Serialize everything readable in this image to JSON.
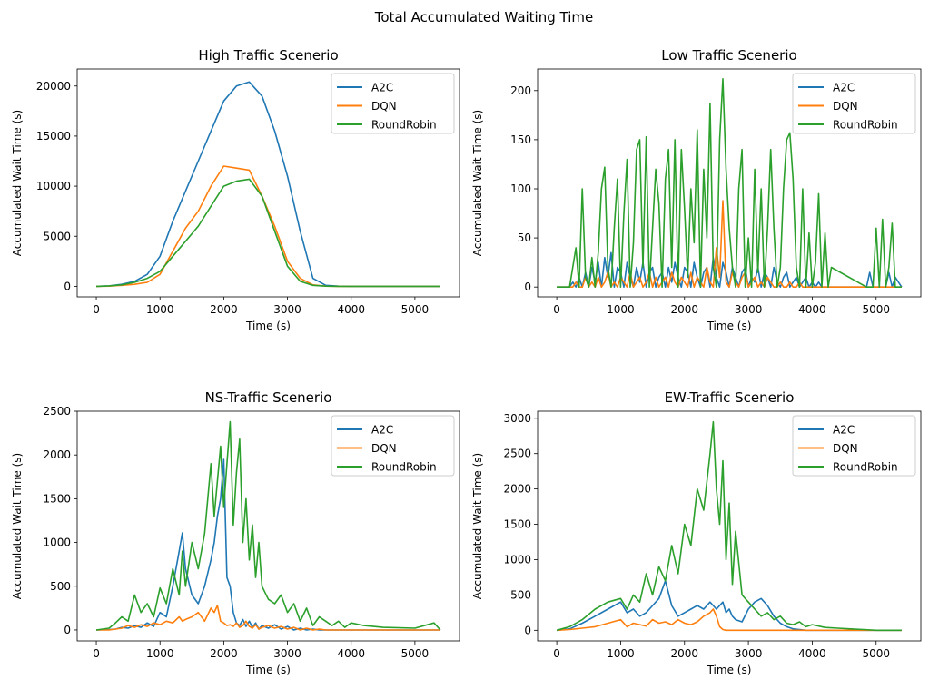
{
  "figure": {
    "suptitle": "Total Accumulated Waiting Time"
  },
  "colors": {
    "A2C": "#1f77b4",
    "DQN": "#ff7f0e",
    "RoundRobin": "#2ca02c"
  },
  "chart_data": [
    {
      "type": "line",
      "title": "High Traffic Scenerio",
      "xlabel": "Time (s)",
      "ylabel": "Accumulated Wait Time (s)",
      "xlim": [
        -300,
        5700
      ],
      "ylim": [
        -1050,
        21700
      ],
      "xticks": [
        0,
        1000,
        2000,
        3000,
        4000,
        5000
      ],
      "yticks": [
        0,
        5000,
        10000,
        15000,
        20000
      ],
      "legend_position": "top-right",
      "x": [
        0,
        200,
        400,
        600,
        800,
        1000,
        1200,
        1400,
        1600,
        1800,
        2000,
        2200,
        2400,
        2600,
        2800,
        3000,
        3200,
        3400,
        3600,
        3800,
        4000,
        4500,
        5000,
        5400
      ],
      "series": [
        {
          "name": "A2C",
          "values": [
            0,
            50,
            200,
            500,
            1200,
            3000,
            6500,
            9500,
            12500,
            15500,
            18500,
            20000,
            20400,
            19000,
            15500,
            11000,
            5500,
            800,
            100,
            20,
            0,
            0,
            0,
            0
          ]
        },
        {
          "name": "DQN",
          "values": [
            0,
            20,
            100,
            200,
            400,
            1200,
            3500,
            5800,
            7500,
            10000,
            12000,
            11800,
            11600,
            9000,
            6000,
            2500,
            800,
            150,
            20,
            0,
            0,
            0,
            0,
            0
          ]
        },
        {
          "name": "RoundRobin",
          "values": [
            0,
            50,
            150,
            400,
            800,
            1500,
            3000,
            4500,
            6000,
            8000,
            10000,
            10500,
            10700,
            9000,
            5500,
            2000,
            500,
            100,
            20,
            0,
            0,
            0,
            0,
            0
          ]
        }
      ]
    },
    {
      "type": "line",
      "title": "Low Traffic Scenerio",
      "xlabel": "Time (s)",
      "ylabel": "Accumulated Wait Time (s)",
      "xlim": [
        -300,
        5700
      ],
      "ylim": [
        -10,
        222
      ],
      "xticks": [
        0,
        1000,
        2000,
        3000,
        4000,
        5000
      ],
      "yticks": [
        0,
        50,
        100,
        150,
        200
      ],
      "legend_position": "top-right",
      "x": [
        0,
        200,
        250,
        300,
        350,
        400,
        450,
        500,
        550,
        600,
        650,
        700,
        750,
        800,
        850,
        900,
        950,
        1000,
        1050,
        1100,
        1150,
        1200,
        1250,
        1300,
        1350,
        1400,
        1450,
        1500,
        1550,
        1600,
        1650,
        1700,
        1750,
        1800,
        1850,
        1900,
        1950,
        2000,
        2050,
        2100,
        2150,
        2200,
        2250,
        2300,
        2350,
        2400,
        2450,
        2500,
        2550,
        2600,
        2650,
        2700,
        2750,
        2800,
        2850,
        2900,
        2950,
        3000,
        3050,
        3100,
        3150,
        3200,
        3250,
        3300,
        3350,
        3400,
        3450,
        3500,
        3550,
        3600,
        3650,
        3700,
        3750,
        3800,
        3850,
        3900,
        3950,
        4000,
        4050,
        4100,
        4150,
        4200,
        4250,
        4300,
        4850,
        4900,
        4950,
        5000,
        5050,
        5100,
        5150,
        5200,
        5250,
        5300,
        5400
      ],
      "series": [
        {
          "name": "A2C",
          "values": [
            0,
            0,
            5,
            0,
            10,
            0,
            15,
            0,
            20,
            5,
            25,
            0,
            30,
            10,
            35,
            0,
            20,
            15,
            0,
            25,
            10,
            0,
            20,
            5,
            25,
            0,
            15,
            20,
            0,
            10,
            15,
            0,
            20,
            5,
            25,
            10,
            0,
            20,
            15,
            0,
            25,
            10,
            0,
            15,
            20,
            0,
            30,
            10,
            0,
            25,
            15,
            0,
            20,
            10,
            0,
            15,
            20,
            0,
            10,
            5,
            20,
            0,
            15,
            10,
            0,
            20,
            5,
            0,
            10,
            15,
            0,
            5,
            10,
            0,
            5,
            10,
            0,
            5,
            0,
            5,
            0,
            0,
            0,
            0,
            0,
            15,
            0,
            0,
            0,
            0,
            0,
            15,
            0,
            10,
            0
          ]
        },
        {
          "name": "DQN",
          "values": [
            0,
            0,
            0,
            5,
            0,
            0,
            10,
            0,
            5,
            0,
            10,
            0,
            5,
            15,
            0,
            5,
            0,
            10,
            5,
            0,
            15,
            0,
            5,
            10,
            0,
            5,
            15,
            0,
            10,
            0,
            5,
            10,
            0,
            15,
            5,
            0,
            10,
            5,
            0,
            15,
            0,
            10,
            5,
            0,
            20,
            5,
            0,
            40,
            10,
            88,
            5,
            0,
            15,
            5,
            0,
            10,
            15,
            0,
            5,
            10,
            0,
            5,
            0,
            10,
            5,
            0,
            0,
            5,
            0,
            0,
            5,
            0,
            0,
            5,
            0,
            0,
            0,
            0,
            0,
            0,
            0,
            0,
            0,
            0,
            0,
            0,
            0,
            0,
            0,
            0,
            0,
            0,
            0,
            0,
            0
          ]
        },
        {
          "name": "RoundRobin",
          "values": [
            0,
            0,
            20,
            40,
            0,
            100,
            10,
            0,
            30,
            0,
            35,
            100,
            122,
            20,
            0,
            60,
            110,
            0,
            75,
            130,
            0,
            45,
            140,
            150,
            20,
            153,
            0,
            60,
            120,
            85,
            0,
            110,
            140,
            20,
            150,
            0,
            140,
            80,
            10,
            100,
            45,
            160,
            0,
            120,
            50,
            187,
            20,
            0,
            150,
            212,
            120,
            60,
            20,
            0,
            100,
            140,
            0,
            50,
            0,
            120,
            15,
            100,
            0,
            60,
            140,
            60,
            0,
            20,
            100,
            150,
            157,
            110,
            20,
            0,
            100,
            0,
            55,
            0,
            25,
            95,
            0,
            55,
            0,
            20,
            0,
            0,
            0,
            60,
            0,
            69,
            0,
            20,
            65,
            0,
            0
          ]
        }
      ]
    },
    {
      "type": "line",
      "title": "NS-Traffic Scenerio",
      "xlabel": "Time (s)",
      "ylabel": "Accumulated Wait Time (s)",
      "xlim": [
        -300,
        5700
      ],
      "ylim": [
        -125,
        2500
      ],
      "xticks": [
        0,
        1000,
        2000,
        3000,
        4000,
        5000
      ],
      "yticks": [
        0,
        500,
        1000,
        1500,
        2000,
        2500
      ],
      "legend_position": "top-right",
      "x": [
        0,
        200,
        300,
        400,
        500,
        600,
        700,
        800,
        900,
        1000,
        1100,
        1200,
        1300,
        1350,
        1400,
        1500,
        1600,
        1700,
        1800,
        1850,
        1900,
        1950,
        2000,
        2050,
        2100,
        2150,
        2200,
        2250,
        2300,
        2350,
        2400,
        2450,
        2500,
        2550,
        2600,
        2700,
        2800,
        2900,
        3000,
        3100,
        3200,
        3300,
        3400,
        3500,
        3600,
        3700,
        3800,
        3900,
        4000,
        4200,
        4500,
        5000,
        5300,
        5400
      ],
      "series": [
        {
          "name": "A2C",
          "values": [
            0,
            5,
            10,
            30,
            20,
            50,
            30,
            80,
            40,
            200,
            150,
            500,
            900,
            1110,
            700,
            400,
            300,
            500,
            800,
            1000,
            1300,
            1500,
            1950,
            600,
            500,
            200,
            80,
            50,
            120,
            40,
            100,
            30,
            80,
            10,
            50,
            20,
            60,
            10,
            40,
            0,
            20,
            0,
            10,
            0,
            0,
            0,
            0,
            0,
            0,
            0,
            0,
            0,
            0,
            0
          ]
        },
        {
          "name": "DQN",
          "values": [
            0,
            0,
            10,
            20,
            50,
            30,
            60,
            40,
            80,
            60,
            100,
            80,
            150,
            100,
            120,
            150,
            200,
            100,
            250,
            200,
            280,
            100,
            80,
            50,
            60,
            40,
            80,
            30,
            50,
            100,
            40,
            20,
            60,
            10,
            30,
            50,
            20,
            40,
            10,
            30,
            0,
            20,
            0,
            10,
            0,
            0,
            0,
            0,
            0,
            0,
            0,
            0,
            0,
            0
          ]
        },
        {
          "name": "RoundRobin",
          "values": [
            0,
            20,
            80,
            150,
            100,
            400,
            200,
            300,
            150,
            480,
            300,
            700,
            400,
            900,
            500,
            1000,
            700,
            1100,
            1900,
            1300,
            1700,
            2100,
            1400,
            1900,
            2380,
            1200,
            1800,
            2180,
            1000,
            1500,
            800,
            1200,
            600,
            1000,
            500,
            350,
            300,
            400,
            200,
            300,
            100,
            250,
            50,
            150,
            100,
            50,
            100,
            30,
            80,
            50,
            30,
            20,
            80,
            0
          ]
        }
      ]
    },
    {
      "type": "line",
      "title": "EW-Traffic Scenerio",
      "xlabel": "Time (s)",
      "ylabel": "Accumulated Wait Time (s)",
      "xlim": [
        -300,
        5700
      ],
      "ylim": [
        -150,
        3100
      ],
      "xticks": [
        0,
        1000,
        2000,
        3000,
        4000,
        5000
      ],
      "yticks": [
        0,
        500,
        1000,
        1500,
        2000,
        2500,
        3000
      ],
      "legend_position": "top-right",
      "x": [
        0,
        200,
        400,
        600,
        800,
        1000,
        1100,
        1200,
        1300,
        1400,
        1500,
        1600,
        1700,
        1800,
        1900,
        2000,
        2100,
        2200,
        2300,
        2400,
        2450,
        2500,
        2550,
        2600,
        2650,
        2700,
        2750,
        2800,
        2900,
        3000,
        3100,
        3200,
        3300,
        3400,
        3500,
        3600,
        3700,
        3800,
        3900,
        4000,
        4200,
        4400,
        4600,
        4800,
        5000,
        5400
      ],
      "series": [
        {
          "name": "A2C",
          "values": [
            0,
            20,
            100,
            200,
            300,
            400,
            250,
            300,
            200,
            250,
            350,
            450,
            700,
            350,
            200,
            250,
            300,
            350,
            300,
            400,
            350,
            300,
            350,
            400,
            250,
            300,
            200,
            150,
            120,
            300,
            400,
            450,
            350,
            200,
            100,
            50,
            20,
            10,
            0,
            0,
            0,
            0,
            0,
            0,
            0,
            0
          ]
        },
        {
          "name": "DQN",
          "values": [
            0,
            10,
            30,
            50,
            100,
            150,
            50,
            100,
            80,
            60,
            150,
            100,
            120,
            80,
            150,
            100,
            80,
            120,
            200,
            250,
            300,
            200,
            50,
            10,
            0,
            0,
            0,
            0,
            0,
            0,
            0,
            0,
            0,
            0,
            0,
            0,
            0,
            0,
            0,
            0,
            0,
            0,
            0,
            0,
            0,
            0
          ]
        },
        {
          "name": "RoundRobin",
          "values": [
            0,
            50,
            150,
            300,
            400,
            450,
            300,
            500,
            400,
            800,
            500,
            900,
            700,
            1200,
            800,
            1500,
            1200,
            2000,
            1700,
            2500,
            2950,
            2000,
            1500,
            2400,
            1000,
            1800,
            650,
            1400,
            500,
            400,
            300,
            200,
            250,
            150,
            200,
            100,
            80,
            120,
            50,
            80,
            40,
            30,
            20,
            10,
            0,
            0
          ]
        }
      ]
    }
  ]
}
